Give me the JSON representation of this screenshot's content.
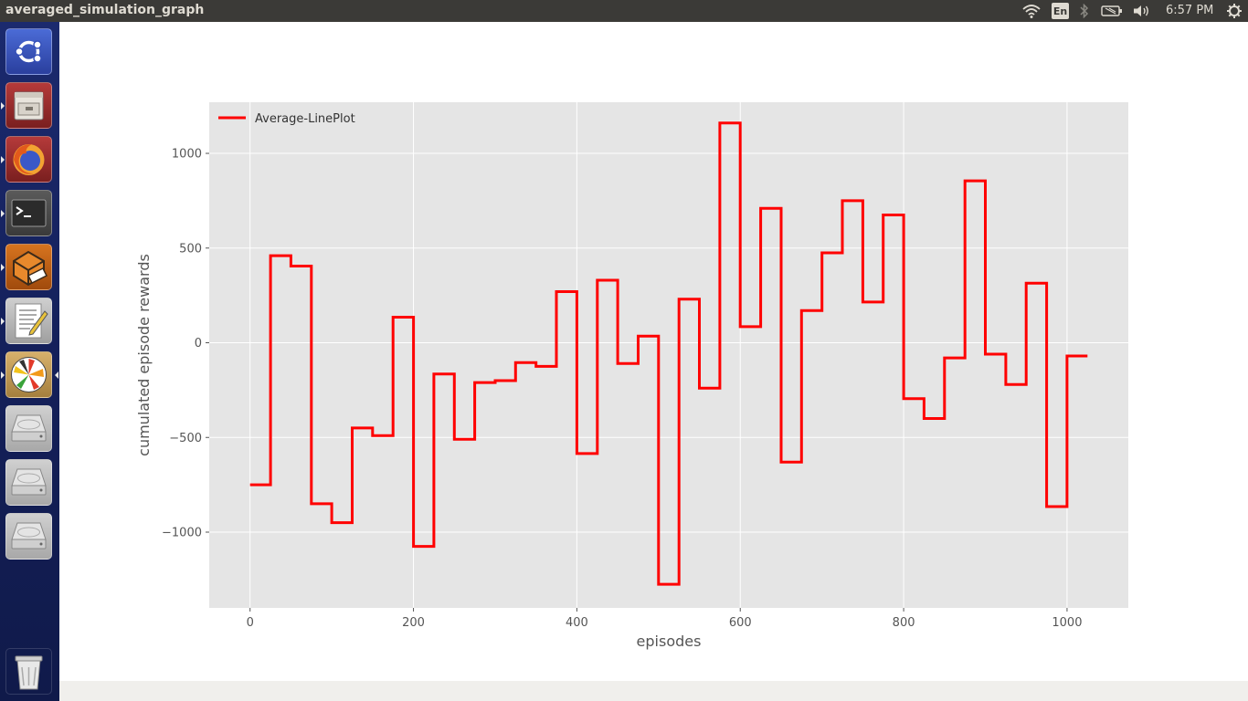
{
  "window": {
    "title": "averaged_simulation_graph"
  },
  "top_panel": {
    "keyboard_layout": "En",
    "clock": "6:57 PM",
    "indicators": [
      "wifi-icon",
      "keyboard-icon",
      "bluetooth-icon",
      "battery-icon",
      "volume-icon",
      "gear-icon"
    ]
  },
  "launcher": {
    "items": [
      {
        "name": "ubuntu-dash-icon",
        "running": false
      },
      {
        "name": "file-manager-icon",
        "running": true
      },
      {
        "name": "firefox-icon",
        "running": true
      },
      {
        "name": "terminal-icon",
        "running": true
      },
      {
        "name": "gazebo-icon",
        "running": true
      },
      {
        "name": "text-editor-icon",
        "running": true
      },
      {
        "name": "plot-viewer-icon",
        "running": true,
        "focused": true
      },
      {
        "name": "drive-icon",
        "running": false
      },
      {
        "name": "drive-icon",
        "running": false
      },
      {
        "name": "drive-icon",
        "running": false
      },
      {
        "name": "trash-icon",
        "running": false
      }
    ]
  },
  "colors": {
    "line": "#ff0000",
    "plot_background": "#e5e5e5",
    "grid": "#ffffff",
    "tick_text": "#555555",
    "launcher": "#14205a",
    "top_panel": "#3b3a37"
  },
  "chart_data": {
    "type": "line",
    "drawstyle": "steps-post",
    "title": "",
    "xlabel": "episodes",
    "ylabel": "cumulated episode rewards",
    "xlim": [
      -50,
      1075
    ],
    "ylim": [
      -1400,
      1270
    ],
    "xticks": [
      0,
      200,
      400,
      600,
      800,
      1000
    ],
    "xtick_labels": [
      "0",
      "200",
      "400",
      "600",
      "800",
      "1000"
    ],
    "yticks": [
      -1000,
      -500,
      0,
      500,
      1000
    ],
    "ytick_labels": [
      "−1000",
      "−500",
      "0",
      "500",
      "1000"
    ],
    "grid": true,
    "legend": {
      "placement": "top-left",
      "entries": [
        "Average-LinePlot"
      ]
    },
    "series": [
      {
        "name": "Average-LinePlot",
        "color": "#ff0000",
        "x": [
          0,
          25,
          50,
          75,
          100,
          125,
          150,
          175,
          200,
          225,
          250,
          275,
          300,
          325,
          350,
          375,
          400,
          425,
          450,
          475,
          500,
          525,
          550,
          575,
          600,
          625,
          650,
          675,
          700,
          725,
          750,
          775,
          800,
          825,
          850,
          875,
          900,
          925,
          950,
          975,
          1000,
          1025
        ],
        "y": [
          -750,
          460,
          405,
          -850,
          -950,
          -450,
          -490,
          135,
          -1075,
          -165,
          -510,
          -210,
          -200,
          -105,
          -125,
          270,
          -585,
          330,
          -110,
          35,
          -1275,
          230,
          -240,
          1160,
          85,
          710,
          -630,
          170,
          475,
          750,
          215,
          675,
          -295,
          -400,
          -80,
          855,
          -60,
          -220,
          315,
          -865,
          -70,
          -70
        ]
      }
    ]
  }
}
